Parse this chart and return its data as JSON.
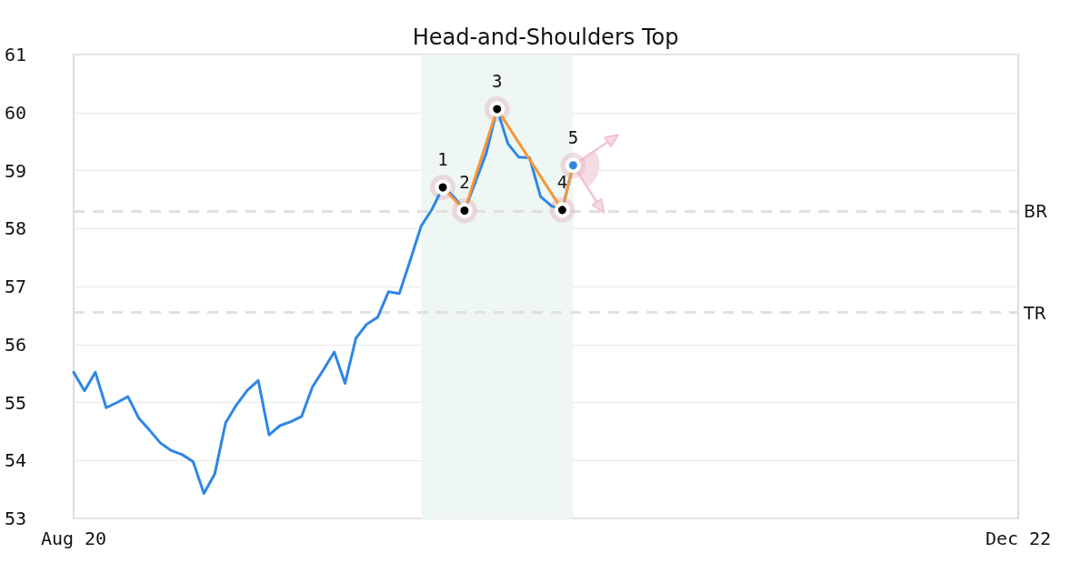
{
  "chart_data": {
    "type": "line",
    "title": "Head-and-Shoulders Top",
    "categories": [
      "Aug 20",
      null,
      null,
      null,
      null,
      null,
      null,
      null,
      null,
      null,
      null,
      null,
      null,
      null,
      null,
      null,
      null,
      null,
      null,
      null,
      null,
      null,
      null,
      null,
      null,
      null,
      null,
      null,
      null,
      null,
      null,
      null,
      null,
      null,
      null,
      null,
      null,
      null,
      null,
      null,
      null,
      null,
      null,
      null,
      null,
      null,
      null,
      null,
      null,
      null,
      null,
      null,
      null,
      null,
      null,
      null,
      null,
      null,
      null,
      null,
      null,
      null,
      null,
      null,
      null,
      null,
      null,
      null,
      null,
      null,
      null,
      null,
      null,
      null,
      null,
      null,
      null,
      null,
      null,
      null,
      null,
      null,
      null,
      null,
      null,
      null,
      null,
      "Dec 22"
    ],
    "ylim": [
      53,
      61
    ],
    "yticks": [
      53,
      54,
      55,
      56,
      57,
      58,
      59,
      60,
      61
    ],
    "series": [
      {
        "color": "#2e86e6",
        "marker": "none",
        "values": [
          55.52,
          55.2,
          55.52,
          54.91,
          55.0,
          55.1,
          54.73,
          54.52,
          54.3,
          54.17,
          54.1,
          53.98,
          53.43,
          53.77,
          54.65,
          54.96,
          55.21,
          55.38,
          54.44,
          54.6,
          54.67,
          54.76,
          55.27,
          55.56,
          55.87,
          55.33,
          56.11,
          56.35,
          56.47,
          56.91,
          56.88,
          57.45,
          58.04,
          58.33,
          58.71,
          58.55,
          58.31,
          58.8,
          59.3,
          60.06,
          59.46,
          59.23,
          59.22,
          58.55,
          58.39,
          58.32,
          59.09,
          null,
          null,
          null,
          null,
          null,
          null,
          null,
          null,
          null,
          null,
          null,
          null,
          null,
          null,
          null,
          null,
          null,
          null,
          null,
          null,
          null,
          null,
          null,
          null,
          null,
          null,
          null,
          null,
          null,
          null,
          null,
          null,
          null,
          null,
          null,
          null,
          null,
          null,
          null,
          null,
          null
        ]
      },
      {
        "color": "#f7963c",
        "marker": "circle",
        "values": [
          null,
          null,
          null,
          null,
          null,
          null,
          null,
          null,
          null,
          null,
          null,
          null,
          null,
          null,
          null,
          null,
          null,
          null,
          null,
          null,
          null,
          null,
          null,
          null,
          null,
          null,
          null,
          null,
          null,
          null,
          null,
          null,
          null,
          null,
          58.71,
          null,
          58.31,
          null,
          null,
          60.06,
          null,
          null,
          null,
          null,
          null,
          58.32,
          59.09,
          null,
          null,
          null,
          null,
          null,
          null,
          null,
          null,
          null,
          null,
          null,
          null,
          null,
          null,
          null,
          null,
          null,
          null,
          null,
          null,
          null,
          null,
          null,
          null,
          null,
          null,
          null,
          null,
          null,
          null,
          null,
          null,
          null,
          null,
          null,
          null,
          null,
          null,
          null,
          null,
          null
        ],
        "colors": [
          null,
          null,
          null,
          null,
          null,
          null,
          null,
          null,
          null,
          null,
          null,
          null,
          null,
          null,
          null,
          null,
          null,
          null,
          null,
          null,
          null,
          null,
          null,
          null,
          null,
          null,
          null,
          null,
          null,
          null,
          null,
          null,
          null,
          null,
          "#000000",
          null,
          "#000000",
          null,
          null,
          "#000000",
          null,
          null,
          null,
          null,
          null,
          "#000000",
          "#2e86e6",
          null,
          null,
          null,
          null,
          null,
          null,
          null,
          null,
          null,
          null,
          null,
          null,
          null,
          null,
          null,
          null,
          null,
          null,
          null,
          null,
          null,
          null,
          null,
          null,
          null,
          null,
          null,
          null,
          null,
          null,
          null,
          null,
          null,
          null,
          null,
          null,
          null,
          null,
          null,
          null,
          null
        ]
      }
    ],
    "annotations": [
      {
        "text": "1",
        "y": 58.71
      },
      {
        "text": "2",
        "y": 58.31
      },
      {
        "text": "3",
        "y": 60.06
      },
      {
        "text": "4",
        "y": 58.32
      },
      {
        "text": "5",
        "y": 59.09
      }
    ],
    "ref_lines": [
      {
        "axis": "y",
        "value": 58.3,
        "label": "BR",
        "color": "#e0e0e0",
        "line_style": "dashed"
      },
      {
        "axis": "y",
        "value": 56.55,
        "label": "TR",
        "color": "#e0e0e0",
        "line_style": "dashed"
      }
    ],
    "grid": "y"
  }
}
